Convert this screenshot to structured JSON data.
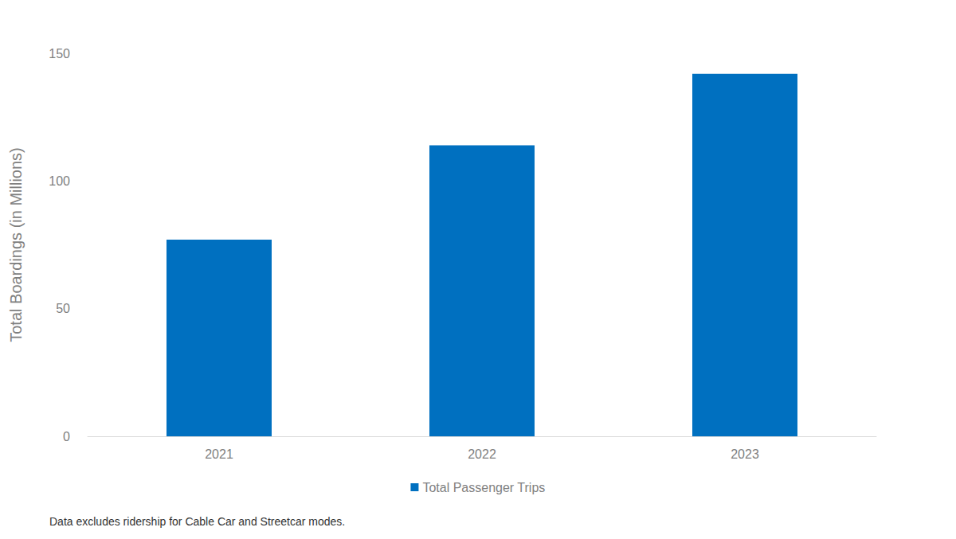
{
  "chart_data": {
    "type": "bar",
    "y_label": "Total Boardings (in Millions)",
    "categories": [
      "2021",
      "2022",
      "2023"
    ],
    "series": [
      {
        "name": "Total Passenger Trips",
        "color": "#0070c0",
        "values": [
          77,
          114,
          142
        ]
      }
    ],
    "ylim": [
      0,
      150
    ],
    "yticks": [
      0,
      50,
      100,
      150
    ],
    "grid": false,
    "legend": "bottom",
    "footnote": "Data excludes ridership for Cable Car and Streetcar modes."
  }
}
